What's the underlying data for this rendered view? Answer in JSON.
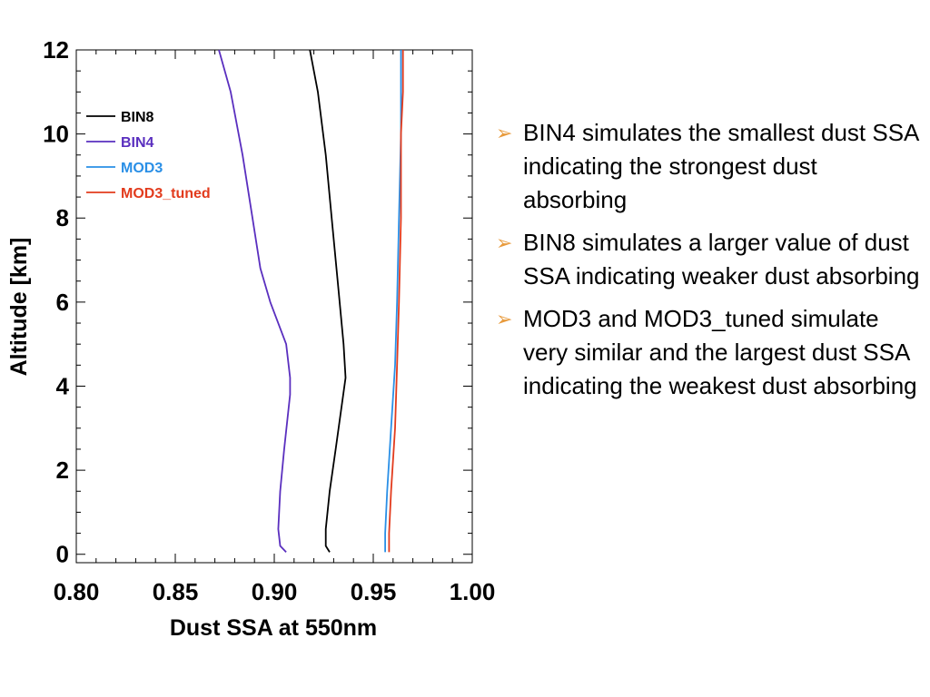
{
  "chart_data": {
    "type": "line",
    "xlabel": "Dust SSA at 550nm",
    "ylabel": "Altitude [km]",
    "xlim": [
      0.8,
      1.0
    ],
    "ylim": [
      -0.2,
      12
    ],
    "xticks": [
      "0.80",
      "0.85",
      "0.90",
      "0.95",
      "1.00"
    ],
    "yticks": [
      "0",
      "2",
      "4",
      "6",
      "8",
      "10",
      "12"
    ],
    "legend_position": "upper-left",
    "grid": false,
    "series": [
      {
        "name": "BIN8",
        "color": "#000000",
        "x": [
          0.928,
          0.926,
          0.926,
          0.928,
          0.931,
          0.936,
          0.935,
          0.932,
          0.929,
          0.926,
          0.922,
          0.918
        ],
        "y": [
          0.05,
          0.2,
          0.6,
          1.5,
          2.5,
          4.2,
          5.0,
          6.5,
          8.0,
          9.5,
          11.0,
          12.0
        ]
      },
      {
        "name": "BIN4",
        "color": "#5a2fbf",
        "x": [
          0.906,
          0.903,
          0.902,
          0.903,
          0.905,
          0.908,
          0.908,
          0.906,
          0.898,
          0.893,
          0.889,
          0.884,
          0.878,
          0.872
        ],
        "y": [
          0.05,
          0.2,
          0.6,
          1.5,
          2.5,
          3.8,
          4.2,
          5.0,
          6.0,
          6.8,
          8.0,
          9.5,
          11.0,
          12.0
        ]
      },
      {
        "name": "MOD3",
        "color": "#2a8fe6",
        "x": [
          0.956,
          0.956,
          0.957,
          0.959,
          0.961,
          0.962,
          0.963,
          0.964,
          0.964,
          0.964
        ],
        "y": [
          0.05,
          0.5,
          1.5,
          3.0,
          4.5,
          6.0,
          8.0,
          10.0,
          11.0,
          12.0
        ]
      },
      {
        "name": "MOD3_tuned",
        "color": "#e23b1d",
        "x": [
          0.958,
          0.958,
          0.959,
          0.961,
          0.962,
          0.963,
          0.964,
          0.964,
          0.965,
          0.965
        ],
        "y": [
          0.05,
          0.5,
          1.5,
          3.0,
          4.5,
          6.0,
          8.0,
          10.0,
          11.0,
          12.0
        ]
      }
    ]
  },
  "bullets": [
    {
      "marker": "➢",
      "text": "BIN4 simulates the smallest dust SSA indicating the strongest dust absorbing"
    },
    {
      "marker": "➢",
      "text": "BIN8 simulates a larger value of dust SSA indicating weaker dust absorbing"
    },
    {
      "marker": "➢",
      "text": "MOD3 and MOD3_tuned simulate very similar and the largest dust SSA indicating the weakest dust absorbing"
    }
  ]
}
